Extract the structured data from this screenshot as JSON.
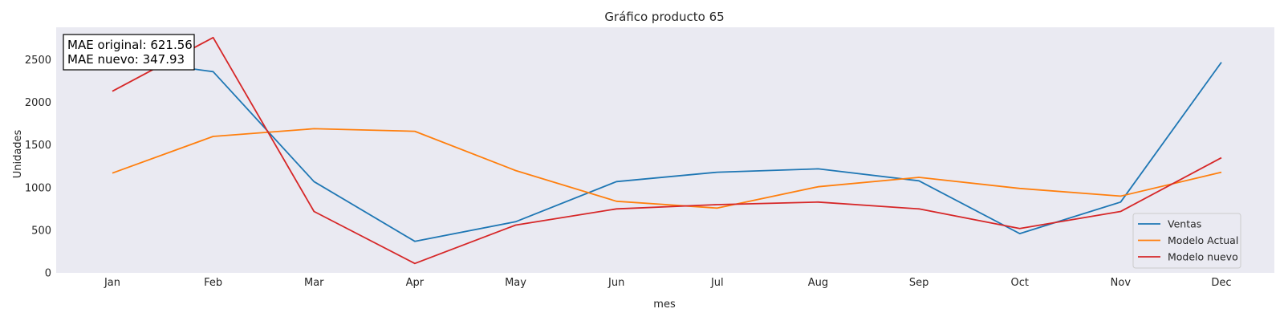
{
  "chart_data": {
    "type": "line",
    "title": "Gráfico producto 65",
    "xlabel": "mes",
    "ylabel": "Unidades",
    "categories": [
      "Jan",
      "Feb",
      "Mar",
      "Apr",
      "May",
      "Jun",
      "Jul",
      "Aug",
      "Sep",
      "Oct",
      "Nov",
      "Dec"
    ],
    "yticks": [
      0,
      500,
      1000,
      1500,
      2000,
      2500
    ],
    "ylim": [
      0,
      2880
    ],
    "grid": false,
    "legend_position": "bottom-right",
    "series": [
      {
        "name": "Ventas",
        "color": "#1f77b4",
        "values": [
          2520,
          2360,
          1070,
          370,
          600,
          1070,
          1180,
          1220,
          1080,
          460,
          830,
          2470
        ]
      },
      {
        "name": "Modelo Actual",
        "color": "#ff7f0e",
        "values": [
          1170,
          1600,
          1690,
          1660,
          1200,
          840,
          760,
          1010,
          1120,
          990,
          900,
          1180
        ]
      },
      {
        "name": "Modelo nuevo",
        "color": "#d62728",
        "values": [
          2130,
          2760,
          720,
          110,
          560,
          750,
          800,
          830,
          750,
          520,
          720,
          1350
        ]
      }
    ],
    "annotation": {
      "lines": [
        "MAE original: 621.56",
        "MAE nuevo: 347.93"
      ]
    }
  },
  "colors": {
    "plot_background": "#eaeaf2"
  }
}
